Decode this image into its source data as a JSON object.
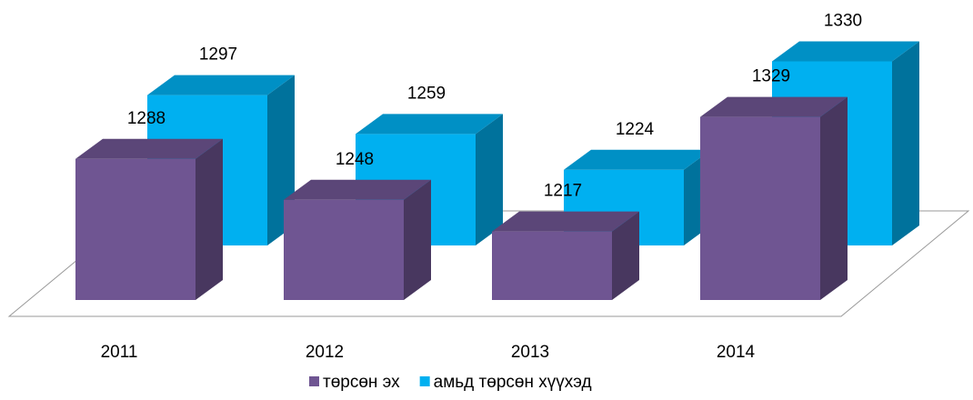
{
  "chart_data": {
    "type": "bar3d",
    "categories": [
      "2011",
      "2012",
      "2013",
      "2014"
    ],
    "series": [
      {
        "name": "төрсөн эх",
        "color": "#6f5592",
        "values": [
          1288,
          1248,
          1217,
          1329
        ]
      },
      {
        "name": "амьд төрсөн хүүхэд",
        "color": "#00b0f0",
        "values": [
          1297,
          1259,
          1224,
          1330
        ]
      }
    ],
    "ylim": [
      1150,
      1350
    ],
    "legend": "bottom"
  }
}
